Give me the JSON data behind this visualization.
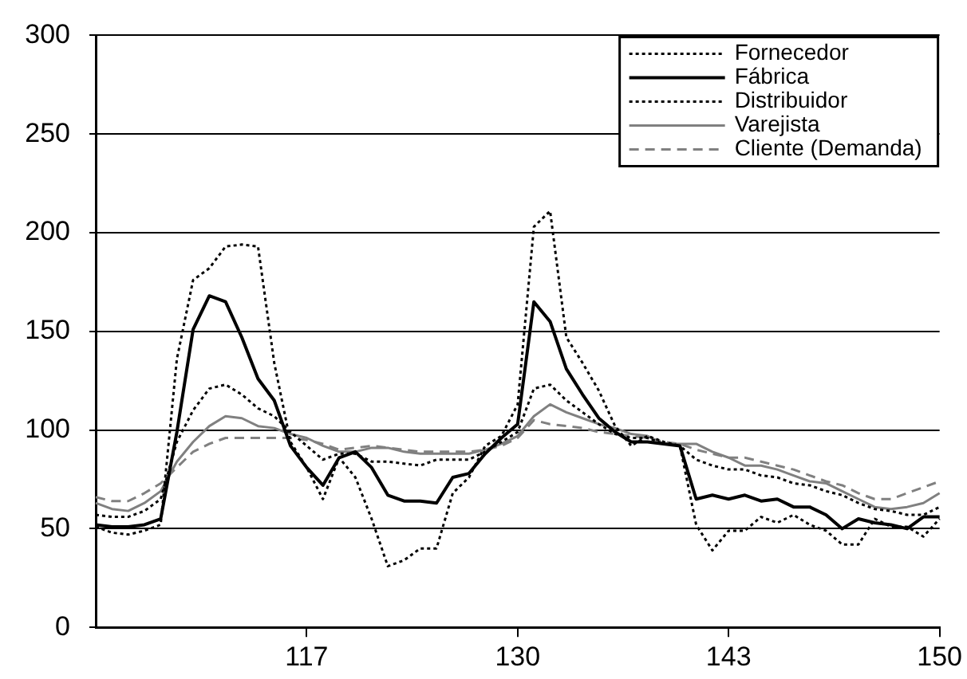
{
  "chart_data": {
    "type": "line",
    "categories": [
      null,
      null,
      null,
      null,
      null,
      null,
      null,
      null,
      null,
      null,
      null,
      null,
      null,
      "117",
      null,
      null,
      null,
      null,
      null,
      null,
      null,
      null,
      null,
      null,
      null,
      null,
      "130",
      null,
      null,
      null,
      null,
      null,
      null,
      null,
      null,
      null,
      null,
      null,
      null,
      "143",
      null,
      null,
      null,
      null,
      null,
      null,
      null,
      null,
      null,
      null,
      null,
      null,
      "150"
    ],
    "ylim": [
      0,
      300
    ],
    "yticks": [
      0,
      50,
      100,
      150,
      200,
      250,
      300
    ],
    "grid": "y",
    "legend": "top right",
    "marker": "none",
    "series": [
      {
        "name": "Fornecedor",
        "color": "#000000",
        "line_style": "dotted",
        "values": [
          51,
          48,
          47,
          49,
          52,
          136,
          176,
          182,
          193,
          194,
          193,
          134,
          94,
          81,
          65,
          86,
          76,
          55,
          31,
          34,
          40,
          40,
          68,
          76,
          92,
          97,
          113,
          203,
          211,
          147,
          134,
          120,
          102,
          92,
          97,
          94,
          92,
          52,
          39,
          49,
          49,
          56,
          53,
          57,
          52,
          49,
          42,
          42,
          55,
          51,
          51,
          46,
          55
        ]
      },
      {
        "name": "Fábrica",
        "color": "#000000",
        "line_style": "solid",
        "values": [
          52,
          51,
          51,
          52,
          55,
          99,
          151,
          168,
          165,
          147,
          126,
          115,
          92,
          81,
          72,
          86,
          89,
          81,
          67,
          64,
          64,
          63,
          76,
          78,
          88,
          96,
          103,
          165,
          155,
          131,
          118,
          106,
          99,
          94,
          94,
          93,
          92,
          65,
          67,
          65,
          67,
          64,
          65,
          61,
          61,
          57,
          50,
          55,
          53,
          52,
          50,
          56,
          56
        ]
      },
      {
        "name": "Distribuidor",
        "color": "#000000",
        "line_style": "dotted",
        "values": [
          57,
          56,
          56,
          59,
          65,
          94,
          110,
          121,
          123,
          118,
          111,
          107,
          99,
          92,
          85,
          88,
          88,
          84,
          84,
          83,
          82,
          85,
          85,
          85,
          89,
          94,
          99,
          121,
          123,
          115,
          109,
          103,
          98,
          96,
          96,
          93,
          92,
          85,
          82,
          80,
          80,
          77,
          76,
          73,
          72,
          69,
          67,
          63,
          60,
          59,
          57,
          57,
          61
        ]
      },
      {
        "name": "Varejista",
        "color": "#808080",
        "line_style": "solid",
        "values": [
          63,
          60,
          59,
          63,
          69,
          84,
          94,
          102,
          107,
          106,
          102,
          101,
          98,
          96,
          92,
          89,
          89,
          91,
          91,
          89,
          88,
          88,
          88,
          88,
          90,
          93,
          97,
          107,
          113,
          109,
          106,
          103,
          101,
          98,
          97,
          93,
          93,
          93,
          89,
          86,
          82,
          82,
          80,
          77,
          74,
          73,
          69,
          65,
          61,
          60,
          61,
          63,
          68
        ]
      },
      {
        "name": "Cliente (Demanda)",
        "color": "#808080",
        "line_style": "dashed",
        "values": [
          66,
          64,
          64,
          68,
          73,
          81,
          89,
          93,
          96,
          96,
          96,
          96,
          96,
          95,
          93,
          90,
          91,
          92,
          91,
          90,
          89,
          89,
          89,
          89,
          90,
          92,
          96,
          105,
          103,
          102,
          101,
          99,
          98,
          97,
          96,
          94,
          93,
          90,
          88,
          86,
          86,
          84,
          82,
          80,
          77,
          74,
          72,
          68,
          65,
          65,
          68,
          71,
          74
        ]
      }
    ]
  }
}
